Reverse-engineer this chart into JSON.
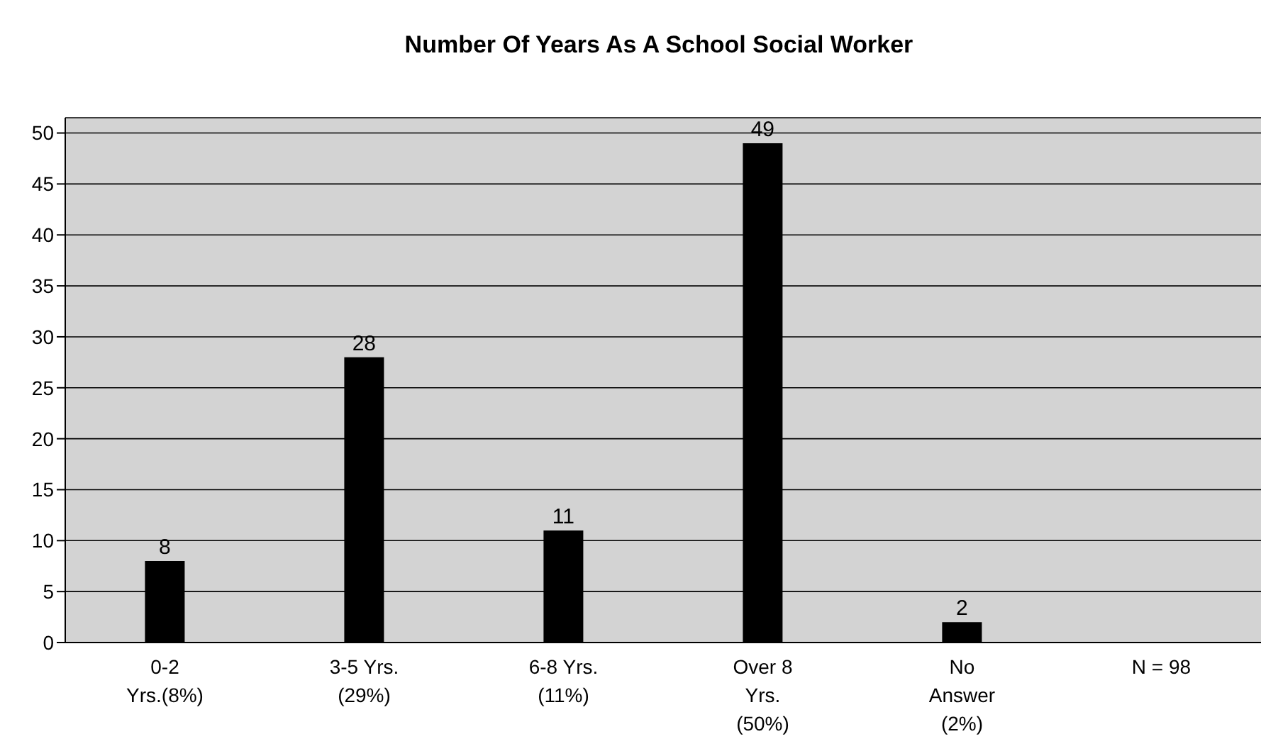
{
  "chart_data": {
    "type": "bar",
    "title": "Number Of Years As A School Social Worker",
    "categories": [
      "0-2\nYrs.(8%)",
      "3-5 Yrs.\n(29%)",
      "6-8 Yrs.\n(11%)",
      "Over 8\nYrs.\n(50%)",
      "No\nAnswer\n(2%)",
      "N = 98"
    ],
    "values": [
      8,
      28,
      11,
      49,
      2,
      null
    ],
    "color": "#000000",
    "ylim": [
      0,
      51.5
    ],
    "yticks": [
      0,
      5,
      10,
      15,
      20,
      25,
      30,
      35,
      40,
      45,
      50
    ],
    "grid": "y",
    "data_labels": true
  }
}
